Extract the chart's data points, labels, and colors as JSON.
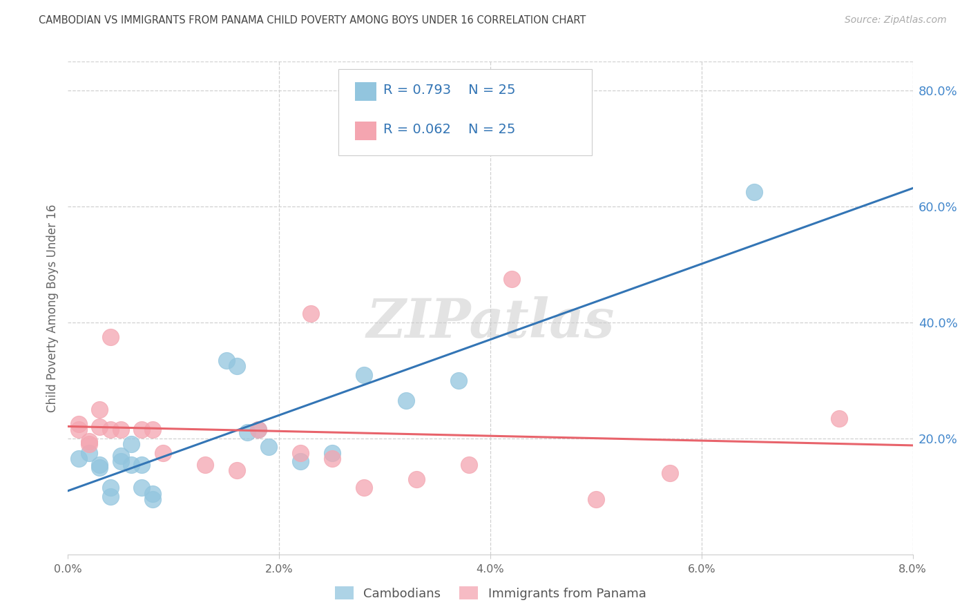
{
  "title": "CAMBODIAN VS IMMIGRANTS FROM PANAMA CHILD POVERTY AMONG BOYS UNDER 16 CORRELATION CHART",
  "source": "Source: ZipAtlas.com",
  "ylabel": "Child Poverty Among Boys Under 16",
  "xlim": [
    0.0,
    0.08
  ],
  "ylim": [
    0.0,
    0.85
  ],
  "yticks": [
    0.2,
    0.4,
    0.6,
    0.8
  ],
  "ytick_labels": [
    "20.0%",
    "40.0%",
    "60.0%",
    "80.0%"
  ],
  "xtick_positions": [
    0.0,
    0.02,
    0.04,
    0.06,
    0.08
  ],
  "xtick_labels": [
    "0.0%",
    "2.0%",
    "4.0%",
    "6.0%",
    "8.0%"
  ],
  "legend_r1": "R = 0.793",
  "legend_n1": "N = 25",
  "legend_r2": "R = 0.062",
  "legend_n2": "N = 25",
  "cambodian_color": "#92c5de",
  "panama_color": "#f4a5b0",
  "cambodian_line_color": "#3375b5",
  "panama_line_color": "#e8636b",
  "watermark": "ZIPatlas",
  "cambodians_x": [
    0.001,
    0.002,
    0.003,
    0.003,
    0.004,
    0.004,
    0.005,
    0.005,
    0.006,
    0.006,
    0.007,
    0.007,
    0.008,
    0.008,
    0.015,
    0.016,
    0.017,
    0.018,
    0.019,
    0.022,
    0.025,
    0.028,
    0.032,
    0.037,
    0.065
  ],
  "cambodians_y": [
    0.165,
    0.175,
    0.15,
    0.155,
    0.1,
    0.115,
    0.17,
    0.16,
    0.19,
    0.155,
    0.155,
    0.115,
    0.095,
    0.105,
    0.335,
    0.325,
    0.21,
    0.215,
    0.185,
    0.16,
    0.175,
    0.31,
    0.265,
    0.3,
    0.625
  ],
  "panama_x": [
    0.001,
    0.001,
    0.002,
    0.002,
    0.003,
    0.003,
    0.004,
    0.004,
    0.005,
    0.007,
    0.008,
    0.009,
    0.013,
    0.016,
    0.018,
    0.022,
    0.023,
    0.025,
    0.028,
    0.033,
    0.038,
    0.042,
    0.05,
    0.057,
    0.073
  ],
  "panama_y": [
    0.225,
    0.215,
    0.195,
    0.19,
    0.25,
    0.22,
    0.215,
    0.375,
    0.215,
    0.215,
    0.215,
    0.175,
    0.155,
    0.145,
    0.215,
    0.175,
    0.415,
    0.165,
    0.115,
    0.13,
    0.155,
    0.475,
    0.095,
    0.14,
    0.235
  ],
  "background_color": "#ffffff",
  "grid_color": "#d0d0d0",
  "title_color": "#444444",
  "axis_label_color": "#666666",
  "right_tick_color": "#4488cc",
  "legend_label_color": "#222222",
  "legend_num_color": "#3375b5"
}
